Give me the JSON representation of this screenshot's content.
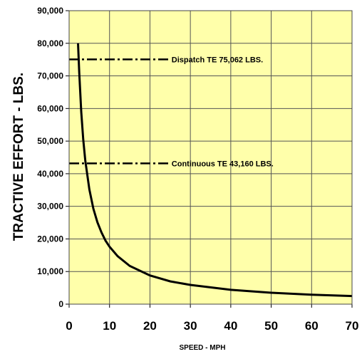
{
  "chart_data": {
    "type": "line",
    "xlabel": "SPEED - MPH",
    "ylabel": "TRACTIVE EFFORT - LBS.",
    "xlim": [
      0,
      70
    ],
    "ylim": [
      0,
      90000
    ],
    "x_ticks": [
      "0",
      "10",
      "20",
      "30",
      "40",
      "50",
      "60",
      "70"
    ],
    "y_ticks": [
      "0",
      "10,000",
      "20,000",
      "30,000",
      "40,000",
      "50,000",
      "60,000",
      "70,000",
      "80,000",
      "90,000"
    ],
    "grid": true,
    "background_color": "#FFFFAA",
    "series": [
      {
        "x": [
          2.2,
          2.5,
          3,
          3.5,
          4,
          5,
          6,
          7,
          8,
          9,
          10,
          12,
          15,
          20,
          25,
          30,
          40,
          50,
          60,
          70
        ],
        "y": [
          80000,
          71000,
          59000,
          50500,
          44000,
          35200,
          29300,
          25100,
          22000,
          19500,
          17600,
          14700,
          11700,
          8800,
          7000,
          5900,
          4400,
          3500,
          2900,
          2500
        ]
      }
    ],
    "reference_lines": [
      {
        "y": 75062,
        "x_end": 25,
        "label": "Dispatch TE 75,062 LBS."
      },
      {
        "y": 43160,
        "x_end": 25,
        "label": "Continuous TE  43,160 LBS."
      }
    ]
  }
}
